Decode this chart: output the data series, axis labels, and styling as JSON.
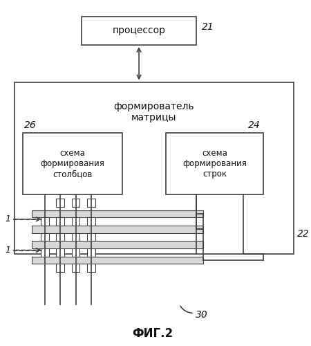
{
  "title": "ФИГ.2",
  "bg": "#ffffff",
  "ec": "#404040",
  "fc": "#ffffff",
  "tc": "#111111",
  "processor_label": "процессор",
  "processor_num": "21",
  "matrix_gen_label": "формирователь\nматрицы",
  "matrix_gen_num": "22",
  "col_scheme_label": "схема\nформирования\nстолбцов",
  "col_scheme_num": "26",
  "row_scheme_label": "схема\nформирования\nстрок",
  "row_scheme_num": "24",
  "label_30": "30",
  "label_1a": "1",
  "label_1b": "1",
  "lw": 1.2
}
